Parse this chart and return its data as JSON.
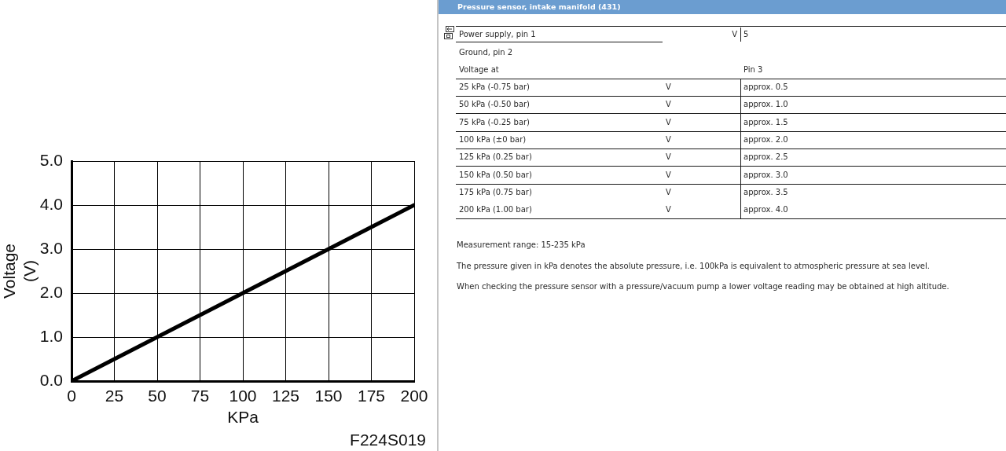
{
  "chart_data": [
    {
      "type": "line",
      "xlabel": "KPa",
      "ylabel": "Voltage\n(V)",
      "x": [
        0,
        25,
        50,
        75,
        100,
        125,
        150,
        175,
        200
      ],
      "series": [
        {
          "color": "#000000",
          "values": [
            0,
            0.5,
            1.0,
            1.5,
            2.0,
            2.5,
            3.0,
            3.5,
            4.0
          ]
        }
      ],
      "xlim": [
        0,
        200
      ],
      "ylim": [
        0,
        5
      ],
      "xticks": [
        0,
        25,
        50,
        75,
        100,
        125,
        150,
        175,
        200
      ],
      "yticks": [
        {
          "value": 0,
          "label": "0.0"
        },
        {
          "value": 1,
          "label": "1.0"
        },
        {
          "value": 2,
          "label": "2.0"
        },
        {
          "value": 3,
          "label": "3.0"
        },
        {
          "value": 4,
          "label": "4.0"
        },
        {
          "value": 5,
          "label": "5.0"
        }
      ],
      "grid": true,
      "marker": "none",
      "line_style": "solid",
      "annotations": [
        "F224S019"
      ]
    },
    {
      "type": "other",
      "title": "Pressure sensor, intake manifold (431)",
      "annotations": [
        "Power supply, pin 1",
        "V",
        "5",
        "Ground, pin 2",
        "Voltage at",
        "Pin 3",
        "25 kPa (-0.75 bar)",
        "V",
        "approx. 0.5",
        "50 kPa (-0.50 bar)",
        "V",
        "approx. 1.0",
        "75 kPa (-0.25 bar)",
        "V",
        "approx. 1.5",
        "100 kPa (±0 bar)",
        "V",
        "approx. 2.0",
        "125 kPa (0.25 bar)",
        "V",
        "approx. 2.5",
        "150 kPa (0.50 bar)",
        "V",
        "approx. 3.0",
        "175 kPa (0.75 bar)",
        "V",
        "approx. 3.5",
        "200 kPa (1.00 bar)",
        "V",
        "approx. 4.0",
        "Measurement range: 15-235 kPa",
        "The pressure given in kPa denotes the absolute pressure, i.e. 100kPa is equivalent to atmospheric pressure at sea level.",
        "When checking the pressure sensor with a pressure/vacuum pump a lower voltage reading may be obtained at high altitude."
      ]
    }
  ]
}
